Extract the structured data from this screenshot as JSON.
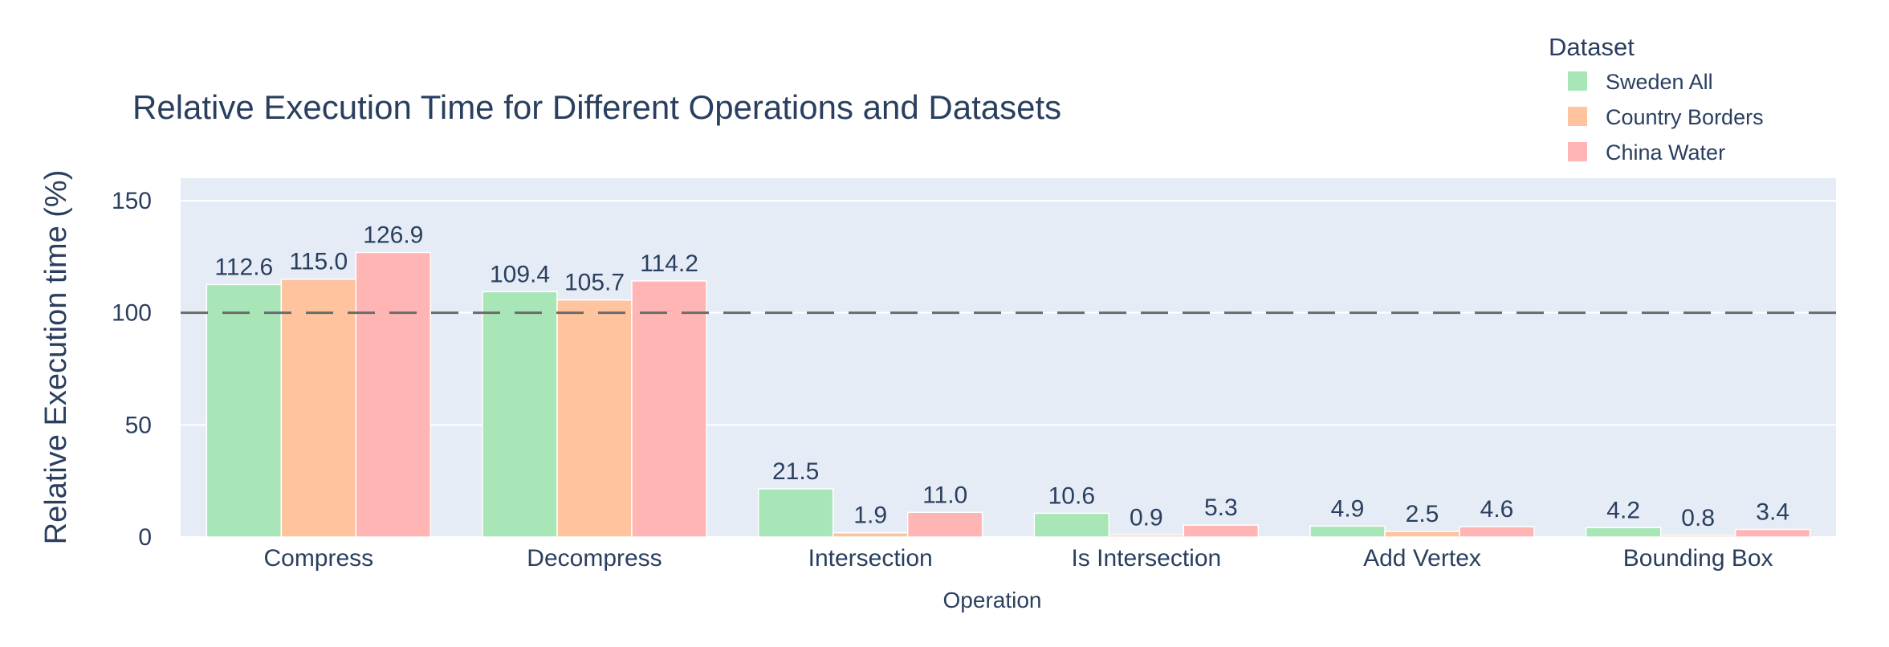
{
  "chart_data": {
    "type": "bar",
    "title": "Relative Execution Time for Different Operations and Datasets",
    "xlabel": "Operation",
    "ylabel": "Relative Execution time (%)",
    "ylim": [
      0,
      160
    ],
    "yticks": [
      0,
      50,
      100,
      150
    ],
    "reference_line": 100,
    "grid": true,
    "legend_title": "Dataset",
    "legend_position": "top-right",
    "categories": [
      "Compress",
      "Decompress",
      "Intersection",
      "Is Intersection",
      "Add Vertex",
      "Bounding Box"
    ],
    "series": [
      {
        "name": "Sweden All",
        "color": "#a8e6b8",
        "values": [
          112.6,
          109.4,
          21.5,
          10.6,
          4.9,
          4.2
        ]
      },
      {
        "name": "Country Borders",
        "color": "#ffc39e",
        "values": [
          115.0,
          105.7,
          1.9,
          0.9,
          2.5,
          0.8
        ]
      },
      {
        "name": "China Water",
        "color": "#ffb5b3",
        "values": [
          126.9,
          114.2,
          11.0,
          5.3,
          4.6,
          3.4
        ]
      }
    ]
  }
}
